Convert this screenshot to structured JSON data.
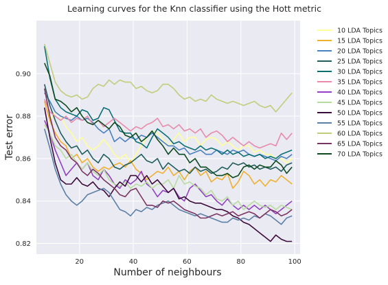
{
  "chart_data": {
    "type": "line",
    "title": "Learning curves for the Knn classifier using the Hott metric",
    "xlabel": "Number of neighbours",
    "ylabel": "Test error",
    "xlim": [
      4,
      102
    ],
    "ylim": [
      0.815,
      0.925
    ],
    "xticks": [
      20,
      40,
      60,
      80,
      100
    ],
    "yticks": [
      0.82,
      0.84,
      0.86,
      0.88,
      0.9
    ],
    "grid": true,
    "legend_position": "outside-right",
    "x": [
      7,
      9,
      11,
      13,
      15,
      17,
      19,
      21,
      23,
      25,
      27,
      29,
      31,
      33,
      35,
      37,
      39,
      41,
      43,
      45,
      47,
      49,
      51,
      53,
      55,
      57,
      59,
      61,
      63,
      65,
      67,
      69,
      71,
      73,
      75,
      77,
      79,
      81,
      83,
      85,
      87,
      89,
      91,
      93,
      95,
      97,
      99
    ],
    "series": [
      {
        "name": "10 LDA Topics",
        "color": "#ffff99",
        "values": [
          0.875,
          0.878,
          0.882,
          0.88,
          0.875,
          0.872,
          0.868,
          0.87,
          0.866,
          0.864,
          0.866,
          0.869,
          0.866,
          0.862,
          0.86,
          0.862,
          0.858,
          0.862,
          0.866,
          0.87,
          0.873,
          0.872,
          0.869,
          0.866,
          0.869,
          0.872,
          0.868,
          0.87,
          0.87,
          0.866,
          0.869,
          0.87,
          0.869,
          0.866,
          0.868,
          0.866,
          0.864,
          0.866,
          0.866,
          0.863,
          0.864,
          0.862,
          0.862,
          0.86,
          0.86,
          0.858,
          0.86
        ]
      },
      {
        "name": "15 LDA Topics",
        "color": "#f0b030",
        "values": [
          0.887,
          0.878,
          0.872,
          0.868,
          0.866,
          0.86,
          0.862,
          0.858,
          0.86,
          0.856,
          0.854,
          0.856,
          0.855,
          0.857,
          0.858,
          0.856,
          0.859,
          0.855,
          0.853,
          0.85,
          0.852,
          0.854,
          0.853,
          0.856,
          0.852,
          0.854,
          0.85,
          0.854,
          0.856,
          0.852,
          0.854,
          0.849,
          0.851,
          0.85,
          0.853,
          0.846,
          0.849,
          0.854,
          0.852,
          0.848,
          0.85,
          0.847,
          0.85,
          0.849,
          0.852,
          0.85,
          0.848
        ]
      },
      {
        "name": "20 LDA Topics",
        "color": "#4a80c0",
        "values": [
          0.891,
          0.887,
          0.882,
          0.88,
          0.879,
          0.878,
          0.88,
          0.878,
          0.879,
          0.877,
          0.874,
          0.872,
          0.874,
          0.868,
          0.87,
          0.868,
          0.87,
          0.869,
          0.871,
          0.87,
          0.872,
          0.87,
          0.868,
          0.866,
          0.866,
          0.864,
          0.865,
          0.862,
          0.863,
          0.864,
          0.862,
          0.862,
          0.864,
          0.863,
          0.862,
          0.864,
          0.863,
          0.864,
          0.862,
          0.861,
          0.862,
          0.861,
          0.86,
          0.859,
          0.861,
          0.86,
          0.862
        ]
      },
      {
        "name": "25 LDA Topics",
        "color": "#1f5c5a",
        "values": [
          0.895,
          0.885,
          0.878,
          0.872,
          0.868,
          0.865,
          0.866,
          0.862,
          0.864,
          0.86,
          0.858,
          0.862,
          0.86,
          0.856,
          0.855,
          0.857,
          0.858,
          0.86,
          0.862,
          0.859,
          0.858,
          0.86,
          0.855,
          0.858,
          0.856,
          0.854,
          0.855,
          0.853,
          0.856,
          0.854,
          0.855,
          0.853,
          0.854,
          0.856,
          0.855,
          0.858,
          0.857,
          0.858,
          0.856,
          0.857,
          0.855,
          0.856,
          0.855,
          0.856,
          0.854,
          0.857,
          0.858
        ]
      },
      {
        "name": "30 LDA Topics",
        "color": "#0a6e74",
        "values": [
          0.913,
          0.898,
          0.888,
          0.884,
          0.882,
          0.881,
          0.88,
          0.883,
          0.882,
          0.878,
          0.879,
          0.884,
          0.883,
          0.878,
          0.873,
          0.872,
          0.872,
          0.868,
          0.867,
          0.865,
          0.87,
          0.874,
          0.872,
          0.87,
          0.867,
          0.868,
          0.866,
          0.865,
          0.864,
          0.866,
          0.864,
          0.865,
          0.864,
          0.862,
          0.864,
          0.862,
          0.863,
          0.861,
          0.862,
          0.861,
          0.862,
          0.86,
          0.861,
          0.86,
          0.862,
          0.863,
          0.864
        ]
      },
      {
        "name": "35 LDA Topics",
        "color": "#e88aa8",
        "values": [
          0.888,
          0.882,
          0.88,
          0.878,
          0.88,
          0.877,
          0.879,
          0.878,
          0.88,
          0.876,
          0.878,
          0.875,
          0.877,
          0.879,
          0.877,
          0.875,
          0.873,
          0.875,
          0.874,
          0.876,
          0.877,
          0.879,
          0.875,
          0.876,
          0.874,
          0.876,
          0.873,
          0.874,
          0.872,
          0.874,
          0.87,
          0.872,
          0.873,
          0.871,
          0.868,
          0.87,
          0.868,
          0.866,
          0.868,
          0.866,
          0.865,
          0.866,
          0.867,
          0.866,
          0.872,
          0.869,
          0.872
        ]
      },
      {
        "name": "40 LDA Topics",
        "color": "#9040c0",
        "values": [
          0.878,
          0.872,
          0.864,
          0.858,
          0.852,
          0.855,
          0.858,
          0.855,
          0.858,
          0.852,
          0.85,
          0.855,
          0.852,
          0.848,
          0.846,
          0.85,
          0.848,
          0.85,
          0.854,
          0.848,
          0.846,
          0.842,
          0.845,
          0.844,
          0.846,
          0.842,
          0.84,
          0.846,
          0.848,
          0.845,
          0.842,
          0.843,
          0.84,
          0.838,
          0.841,
          0.838,
          0.836,
          0.838,
          0.836,
          0.838,
          0.836,
          0.838,
          0.836,
          0.834,
          0.836,
          0.838,
          0.84
        ]
      },
      {
        "name": "45 LDA Topics",
        "color": "#b8dca0",
        "values": [
          0.876,
          0.872,
          0.866,
          0.864,
          0.86,
          0.862,
          0.858,
          0.855,
          0.858,
          0.854,
          0.852,
          0.855,
          0.85,
          0.848,
          0.847,
          0.849,
          0.846,
          0.848,
          0.847,
          0.849,
          0.846,
          0.848,
          0.848,
          0.85,
          0.846,
          0.852,
          0.848,
          0.849,
          0.847,
          0.846,
          0.843,
          0.845,
          0.841,
          0.84,
          0.842,
          0.838,
          0.84,
          0.836,
          0.838,
          0.84,
          0.838,
          0.837,
          0.838,
          0.836,
          0.838,
          0.837,
          0.836
        ]
      },
      {
        "name": "50 LDA Topics",
        "color": "#3c0a3a",
        "values": [
          0.884,
          0.87,
          0.858,
          0.85,
          0.848,
          0.848,
          0.851,
          0.848,
          0.847,
          0.849,
          0.846,
          0.845,
          0.842,
          0.846,
          0.849,
          0.847,
          0.852,
          0.852,
          0.849,
          0.852,
          0.848,
          0.85,
          0.847,
          0.844,
          0.846,
          0.841,
          0.842,
          0.84,
          0.839,
          0.839,
          0.838,
          0.837,
          0.836,
          0.836,
          0.835,
          0.833,
          0.832,
          0.83,
          0.829,
          0.827,
          0.825,
          0.823,
          0.821,
          0.824,
          0.822,
          0.821,
          0.821
        ]
      },
      {
        "name": "55 LDA Topics",
        "color": "#5b7fa6",
        "values": [
          0.874,
          0.865,
          0.855,
          0.848,
          0.843,
          0.84,
          0.838,
          0.84,
          0.843,
          0.844,
          0.845,
          0.846,
          0.844,
          0.84,
          0.836,
          0.835,
          0.833,
          0.836,
          0.835,
          0.837,
          0.836,
          0.838,
          0.839,
          0.84,
          0.838,
          0.836,
          0.835,
          0.834,
          0.833,
          0.834,
          0.833,
          0.832,
          0.831,
          0.83,
          0.83,
          0.832,
          0.831,
          0.832,
          0.831,
          0.833,
          0.832,
          0.834,
          0.833,
          0.831,
          0.829,
          0.832,
          0.833
        ]
      },
      {
        "name": "60 LDA Topics",
        "color": "#c2cc7a",
        "values": [
          0.914,
          0.905,
          0.896,
          0.892,
          0.89,
          0.889,
          0.89,
          0.888,
          0.889,
          0.893,
          0.895,
          0.894,
          0.897,
          0.895,
          0.897,
          0.896,
          0.896,
          0.893,
          0.894,
          0.892,
          0.891,
          0.892,
          0.895,
          0.895,
          0.893,
          0.89,
          0.888,
          0.889,
          0.887,
          0.888,
          0.887,
          0.89,
          0.888,
          0.887,
          0.886,
          0.887,
          0.886,
          0.885,
          0.886,
          0.887,
          0.885,
          0.884,
          0.885,
          0.882,
          0.885,
          0.888,
          0.891
        ]
      },
      {
        "name": "65 LDA Topics",
        "color": "#7a3460",
        "values": [
          0.893,
          0.88,
          0.87,
          0.866,
          0.864,
          0.86,
          0.858,
          0.854,
          0.852,
          0.855,
          0.853,
          0.85,
          0.848,
          0.846,
          0.843,
          0.842,
          0.845,
          0.846,
          0.842,
          0.838,
          0.838,
          0.837,
          0.84,
          0.839,
          0.84,
          0.838,
          0.836,
          0.835,
          0.834,
          0.832,
          0.832,
          0.833,
          0.834,
          0.833,
          0.834,
          0.835,
          0.833,
          0.834,
          0.835,
          0.834,
          0.832,
          0.834,
          0.836,
          0.835,
          0.833,
          0.834,
          0.836
        ]
      },
      {
        "name": "70 LDA Topics",
        "color": "#0b4a1e",
        "values": [
          0.905,
          0.899,
          0.888,
          0.887,
          0.885,
          0.882,
          0.884,
          0.88,
          0.877,
          0.876,
          0.878,
          0.876,
          0.874,
          0.877,
          0.875,
          0.871,
          0.87,
          0.872,
          0.868,
          0.87,
          0.873,
          0.869,
          0.866,
          0.862,
          0.865,
          0.862,
          0.862,
          0.858,
          0.86,
          0.856,
          0.856,
          0.854,
          0.852,
          0.852,
          0.853,
          0.851,
          0.852,
          0.856,
          0.857,
          0.855,
          0.857,
          0.856,
          0.856,
          0.859,
          0.857,
          0.853,
          0.856
        ]
      }
    ]
  }
}
